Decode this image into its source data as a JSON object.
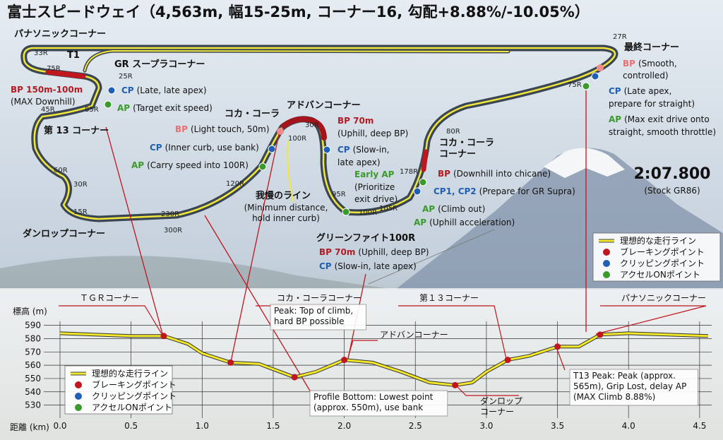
{
  "title": "富士スピードウェイ（4,563m, 幅15-25m, コーナー16, 勾配+8.88%/-10.05%）",
  "map": {
    "labels": [
      {
        "text": "パナソニックコーナー"
      },
      {
        "text": "33R"
      },
      {
        "text": "T1"
      },
      {
        "text": "75R"
      },
      {
        "text": "GR スープラコーナー"
      },
      {
        "text": "25R"
      },
      {
        "tag": "BP 150m-100m"
      },
      {
        "text": "(MAX Downhill)"
      },
      {
        "tag": "CP",
        "text": "(Late, late apex)"
      },
      {
        "text": "45R"
      },
      {
        "text": "85R"
      },
      {
        "tag": "AP",
        "text": "(Target exit speed)"
      },
      {
        "text": "第 13 コーナー"
      },
      {
        "text": "コカ・コーラ"
      },
      {
        "text": "アドバンコーナー"
      },
      {
        "tag": "BP",
        "text": "(Light touch, 50m)"
      },
      {
        "text": "30R"
      },
      {
        "text": "100R"
      },
      {
        "tag": "BP 70m"
      },
      {
        "text": "(Uphill, deep BP)"
      },
      {
        "tag": "CP",
        "text": "(Inner curb, use bank)"
      },
      {
        "tag": "CP",
        "text": "(Slow-in,"
      },
      {
        "text": "late apex)"
      },
      {
        "tag": "AP",
        "text": "(Carry speed into 100R)"
      },
      {
        "text": "60R"
      },
      {
        "tag": "Early AP"
      },
      {
        "text": "(Prioritize"
      },
      {
        "text": "exit drive)"
      },
      {
        "text": "30R"
      },
      {
        "text": "120R"
      },
      {
        "text": "95R"
      },
      {
        "text": "我慢のライン"
      },
      {
        "text": "(Minimum distance,"
      },
      {
        "text": "hold inner curb)"
      },
      {
        "text": "15R"
      },
      {
        "text": "230R"
      },
      {
        "text": "100R"
      },
      {
        "text": "105R"
      },
      {
        "text": "300R"
      },
      {
        "text": "ダンロップコーナー"
      },
      {
        "text": "グリーンファイト100R"
      },
      {
        "tag": "BP 70m",
        "text": "(Uphill, deep BP)"
      },
      {
        "tag": "CP",
        "text": "(Slow-in, late apex)"
      },
      {
        "text": "80R"
      },
      {
        "text": "コカ・コーラ"
      },
      {
        "text": "コーナー"
      },
      {
        "text": "178R"
      },
      {
        "tag": "BP",
        "text": "(Downhill into chicane)"
      },
      {
        "tag": "CP1, CP2",
        "text": "(Prepare for GR Supra)"
      },
      {
        "tag": "AP",
        "text": "(Climb out)"
      },
      {
        "tag": "AP",
        "text": "(Uphill acceleration)"
      },
      {
        "text": "27R"
      },
      {
        "text": "最終コーナー"
      },
      {
        "tag": "BP",
        "text": "(Smooth,"
      },
      {
        "text": "controlled)"
      },
      {
        "text": "75R"
      },
      {
        "tag": "CP",
        "text": "(Late apex,"
      },
      {
        "text": "prepare for straight)"
      },
      {
        "tag": "AP",
        "text": "(Max exit drive onto"
      },
      {
        "text": "straight, smooth throttle)"
      },
      {
        "text": "2:07.800"
      },
      {
        "text": "(Stock GR86)"
      }
    ]
  },
  "chart_data": {
    "type": "line",
    "y_label": "標高 (m)",
    "x_label": "距離 (km)",
    "xlim": [
      0,
      4.6
    ],
    "ylim": [
      525,
      593
    ],
    "xticks": [
      {
        "value": 0,
        "label": "0.0"
      },
      {
        "value": 0.5,
        "label": "0.5"
      },
      {
        "value": 1,
        "label": "1.0"
      },
      {
        "value": 1.5,
        "label": "1.5"
      },
      {
        "value": 2,
        "label": "2.0"
      },
      {
        "value": 2.5,
        "label": "2.5"
      },
      {
        "value": 3,
        "label": "3.0"
      },
      {
        "value": 3.5,
        "label": "3.5"
      },
      {
        "value": 4,
        "label": "4.0"
      },
      {
        "value": 4.5,
        "label": "4.5"
      }
    ],
    "yticks": [
      530,
      540,
      550,
      560,
      570,
      580,
      590
    ],
    "grid": true,
    "series": [
      {
        "color": "#f2e829",
        "x": [
          0,
          0.5,
          0.73,
          0.9,
          1.0,
          1.2,
          1.4,
          1.65,
          1.8,
          2.0,
          2.2,
          2.4,
          2.6,
          2.78,
          2.9,
          3.0,
          3.15,
          3.3,
          3.5,
          3.65,
          3.8,
          4.0,
          4.56
        ],
        "values": [
          584,
          582,
          582,
          576,
          569,
          562,
          561,
          551,
          555,
          564,
          562,
          555,
          547,
          545,
          547,
          555,
          564,
          567,
          574,
          574,
          583,
          584,
          582
        ]
      },
      {
        "color": "#c0161e",
        "x": [
          0.73,
          1.2,
          1.65,
          2.0,
          2.78,
          3.15,
          3.5,
          3.8
        ],
        "values": [
          582,
          562,
          551,
          564,
          545,
          564,
          574,
          583
        ]
      }
    ],
    "legend": [
      {
        "label": "理想的な走行ライン",
        "color": "#f2e829"
      },
      {
        "label": "ブレーキングポイント",
        "color": "#c0161e"
      },
      {
        "label": "クリッピングポイント",
        "color": "#1f5fb4"
      },
      {
        "label": "アクセルONポイント",
        "color": "#3a9a2c"
      }
    ],
    "corner_labels": [
      "ＴＧＲコーナー",
      "コカ・コーラコーナー",
      "第１３コーナー",
      "パナソニックコーナー"
    ],
    "callouts": [
      {
        "lines": [
          "Peak: Top of climb,",
          "hard BP possible"
        ]
      },
      {
        "lines": [
          "アドバンコーナー"
        ]
      },
      {
        "lines": [
          "ダンロップ",
          "コーナー"
        ]
      },
      {
        "lines": [
          "Profile Bottom: Lowest point",
          "(approx. 550m), use bank"
        ]
      },
      {
        "lines": [
          "T13 Peak: Peak (approx.",
          "565m), Grip Lost, delay AP",
          "(MAX Climb 8.88%)"
        ]
      }
    ]
  }
}
